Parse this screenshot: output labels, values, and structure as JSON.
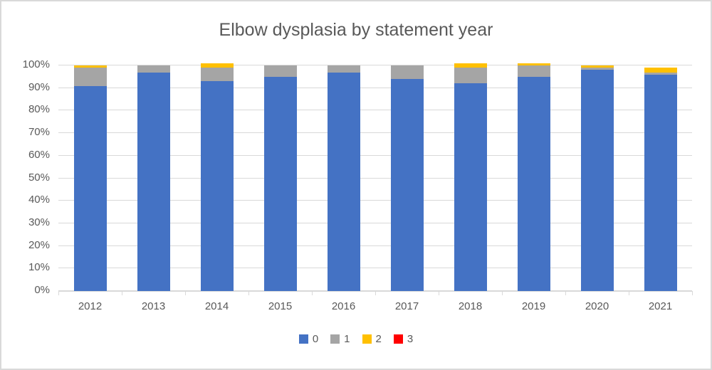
{
  "title": "Elbow dysplasia by statement year",
  "colors": {
    "series_0": "#4472C4",
    "series_1": "#A5A5A5",
    "series_2": "#FFC000",
    "series_3": "#FF0000",
    "text": "#595959",
    "gridline": "#D9D9D9",
    "border": "#D9D9D9",
    "background": "#FFFFFF"
  },
  "chart_data": {
    "type": "bar",
    "stacked": true,
    "title": "Elbow dysplasia by statement year",
    "xlabel": "",
    "ylabel": "",
    "categories": [
      "2012",
      "2013",
      "2014",
      "2015",
      "2016",
      "2017",
      "2018",
      "2019",
      "2020",
      "2021"
    ],
    "series": [
      {
        "name": "0",
        "color": "#4472C4",
        "values": [
          91,
          97,
          93,
          95,
          97,
          94,
          92,
          95,
          98,
          96
        ]
      },
      {
        "name": "1",
        "color": "#A5A5A5",
        "values": [
          8,
          3,
          6,
          5,
          3,
          6,
          7,
          5,
          1,
          1
        ]
      },
      {
        "name": "2",
        "color": "#FFC000",
        "values": [
          1,
          0,
          2,
          0,
          0,
          0,
          2,
          1,
          1,
          2
        ]
      },
      {
        "name": "3",
        "color": "#FF0000",
        "values": [
          0,
          0,
          0,
          0,
          0,
          0,
          0,
          0,
          0,
          0
        ]
      }
    ],
    "y_ticks": [
      "0%",
      "10%",
      "20%",
      "30%",
      "40%",
      "50%",
      "60%",
      "70%",
      "80%",
      "90%",
      "100%"
    ],
    "ylim": [
      0,
      100
    ],
    "grid": true,
    "legend_position": "bottom",
    "legend_labels": [
      "0",
      "1",
      "2",
      "3"
    ]
  }
}
